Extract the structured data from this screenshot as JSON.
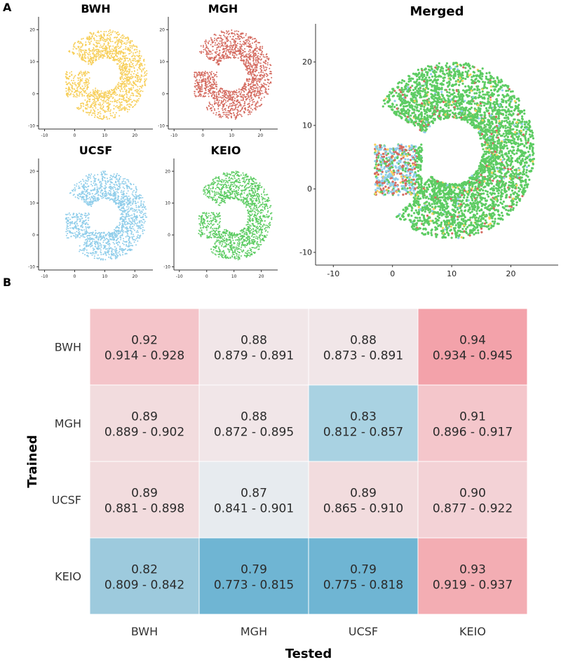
{
  "panel_a_label": "A",
  "panel_b_label": "B",
  "chart_data": [
    {
      "type": "scatter",
      "title": "BWH",
      "point_color": "#f7cf5b",
      "xticks": [
        -10,
        0,
        10,
        20
      ],
      "yticks": [
        -10,
        0,
        10,
        20
      ],
      "xlim": [
        -12,
        26
      ],
      "ylim": [
        -11,
        24
      ],
      "tick_labels": {
        "x": [
          "-10",
          "0",
          "10",
          "20"
        ],
        "y": [
          "-10",
          "0",
          "10",
          "20"
        ]
      }
    },
    {
      "type": "scatter",
      "title": "MGH",
      "point_color": "#d46a5f",
      "xticks": [
        -10,
        0,
        10,
        20
      ],
      "yticks": [
        -10,
        0,
        10,
        20
      ],
      "xlim": [
        -12,
        26
      ],
      "ylim": [
        -11,
        24
      ],
      "tick_labels": {
        "x": [
          "-10",
          "0",
          "10",
          "20"
        ],
        "y": [
          "-10",
          "0",
          "10",
          "20"
        ]
      }
    },
    {
      "type": "scatter",
      "title": "UCSF",
      "point_color": "#8fcdea",
      "xticks": [
        -10,
        0,
        10,
        20
      ],
      "yticks": [
        -10,
        0,
        10,
        20
      ],
      "xlim": [
        -12,
        26
      ],
      "ylim": [
        -11,
        24
      ],
      "tick_labels": {
        "x": [
          "-10",
          "0",
          "10",
          "20"
        ],
        "y": [
          "-10",
          "0",
          "10",
          "20"
        ]
      }
    },
    {
      "type": "scatter",
      "title": "KEIO",
      "point_color": "#5dcc63",
      "xticks": [
        -10,
        0,
        10,
        20
      ],
      "yticks": [
        -10,
        0,
        10,
        20
      ],
      "xlim": [
        -12,
        26
      ],
      "ylim": [
        -11,
        24
      ],
      "tick_labels": {
        "x": [
          "-10",
          "0",
          "10",
          "20"
        ],
        "y": [
          "-10",
          "0",
          "10",
          "20"
        ]
      }
    },
    {
      "type": "scatter",
      "title": "Merged",
      "series_colors": [
        "#d46a5f",
        "#f7cf5b",
        "#8fcdea",
        "#5dcc63"
      ],
      "xticks": [
        -10,
        0,
        10,
        20
      ],
      "yticks": [
        -10,
        0,
        10,
        20
      ],
      "xlim": [
        -13,
        28
      ],
      "ylim": [
        -12,
        26
      ],
      "tick_labels": {
        "x": [
          "-10",
          "0",
          "10",
          "20"
        ],
        "y": [
          "-10",
          "0",
          "10",
          "20"
        ]
      }
    },
    {
      "type": "heatmap",
      "xlabel": "Tested",
      "ylabel": "Trained",
      "columns": [
        "BWH",
        "MGH",
        "UCSF",
        "KEIO"
      ],
      "rows": [
        "BWH",
        "MGH",
        "UCSF",
        "KEIO"
      ],
      "values": [
        [
          0.92,
          0.88,
          0.88,
          0.94
        ],
        [
          0.89,
          0.88,
          0.83,
          0.91
        ],
        [
          0.89,
          0.87,
          0.89,
          0.9
        ],
        [
          0.82,
          0.79,
          0.79,
          0.93
        ]
      ],
      "value_labels": [
        [
          "0.92",
          "0.88",
          "0.88",
          "0.94"
        ],
        [
          "0.89",
          "0.88",
          "0.83",
          "0.91"
        ],
        [
          "0.89",
          "0.87",
          "0.89",
          "0.90"
        ],
        [
          "0.82",
          "0.79",
          "0.79",
          "0.93"
        ]
      ],
      "ci_labels": [
        [
          "0.914 - 0.928",
          "0.879 - 0.891",
          "0.873 - 0.891",
          "0.934 - 0.945"
        ],
        [
          "0.889 - 0.902",
          "0.872 - 0.895",
          "0.812 - 0.857",
          "0.896 - 0.917"
        ],
        [
          "0.881 - 0.898",
          "0.841 - 0.901",
          "0.865 - 0.910",
          "0.877 - 0.922"
        ],
        [
          "0.809 - 0.842",
          "0.773 - 0.815",
          "0.775 - 0.818",
          "0.919 - 0.937"
        ]
      ],
      "cell_colors": [
        [
          "#f4c4c9",
          "#f1e6e8",
          "#f1e6e8",
          "#f3a2aa"
        ],
        [
          "#f2dcde",
          "#f1e6e8",
          "#a9d2e2",
          "#f4c6cb"
        ],
        [
          "#f2dcde",
          "#e7ebef",
          "#f2dcde",
          "#f3d2d6"
        ],
        [
          "#9dcadd",
          "#6fb5d3",
          "#6fb5d3",
          "#f3adb3"
        ]
      ]
    }
  ]
}
